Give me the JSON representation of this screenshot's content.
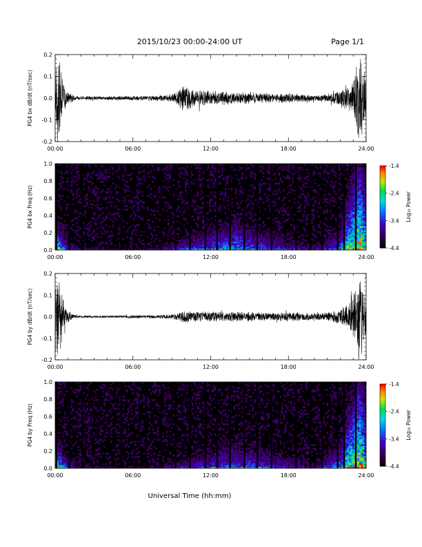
{
  "header": {
    "title": "2015/10/23  00:00-24:00 UT",
    "page": "Page 1/1"
  },
  "xlabel": "Universal Time (hh:mm)",
  "colorbar": {
    "label": "Log₁₀ Power",
    "ticks": [
      "-1.4",
      "-2.4",
      "-3.4",
      "-4.4"
    ],
    "range": [
      -4.4,
      -1.4
    ]
  },
  "chart_data": [
    {
      "type": "line",
      "ylabel": "PG4 bx dB/dt (nT/sec)",
      "xlim": [
        0,
        24
      ],
      "ylim": [
        -0.2,
        0.2
      ],
      "x_ticks": [
        "00:00",
        "06:00",
        "12:00",
        "18:00",
        "24:00"
      ],
      "y_ticks": [
        "0.2",
        "0.1",
        "0.0",
        "-0.1",
        "-0.2"
      ],
      "envelope": {
        "hours": [
          0,
          0.3,
          0.8,
          1.5,
          2,
          3,
          4,
          5,
          6,
          7,
          8,
          9,
          9.5,
          9.8,
          10.5,
          11,
          12,
          13,
          14,
          15,
          16,
          17,
          18,
          19,
          20,
          21,
          22,
          22.3,
          22.7,
          23,
          23.3,
          23.6,
          24
        ],
        "amplitude": [
          0.2,
          0.2,
          0.05,
          0.01,
          0.01,
          0.01,
          0.01,
          0.01,
          0.012,
          0.012,
          0.015,
          0.02,
          0.04,
          0.07,
          0.05,
          0.04,
          0.035,
          0.035,
          0.03,
          0.03,
          0.025,
          0.025,
          0.025,
          0.02,
          0.015,
          0.02,
          0.04,
          0.07,
          0.05,
          0.1,
          0.2,
          0.2,
          0.1
        ]
      }
    },
    {
      "type": "heatmap",
      "ylabel": "PG4 bx Freq (Hz)",
      "xlim": [
        0,
        24
      ],
      "ylim": [
        0,
        1.0
      ],
      "x_ticks": [
        "00:00",
        "06:00",
        "12:00",
        "18:00",
        "24:00"
      ],
      "y_ticks": [
        "1.0",
        "0.8",
        "0.6",
        "0.4",
        "0.2",
        "0.0"
      ],
      "z_range": [
        -4.4,
        -1.4
      ],
      "gap_hours": [
        0.1,
        1.1,
        2.1,
        5.1,
        7.0,
        8.2,
        9.3,
        10.4,
        11.6,
        12.5,
        13.5,
        14.6,
        15.6,
        16.7,
        18.6,
        19.7,
        20.6,
        21.8,
        22.3,
        23.2
      ],
      "activity_hours": [
        0,
        0.5,
        1,
        2,
        4,
        6,
        8,
        10,
        12,
        14,
        16,
        18,
        20,
        22,
        22.5,
        23,
        23.5,
        24
      ],
      "activity_strength": [
        0.9,
        0.6,
        0.35,
        0.2,
        0.15,
        0.15,
        0.2,
        0.4,
        0.5,
        0.55,
        0.45,
        0.35,
        0.25,
        0.45,
        0.8,
        0.9,
        1.0,
        0.8
      ],
      "activity_height_hz": [
        0.25,
        0.2,
        0.12,
        0.08,
        0.06,
        0.06,
        0.08,
        0.15,
        0.2,
        0.3,
        0.2,
        0.15,
        0.1,
        0.25,
        0.4,
        0.6,
        0.8,
        0.5
      ]
    },
    {
      "type": "line",
      "ylabel": "PG4 by dB/dt (nT/sec)",
      "xlim": [
        0,
        24
      ],
      "ylim": [
        -0.2,
        0.2
      ],
      "x_ticks": [
        "00:00",
        "06:00",
        "12:00",
        "18:00",
        "24:00"
      ],
      "y_ticks": [
        "0.2",
        "0.1",
        "0.0",
        "-0.1",
        "-0.2"
      ],
      "envelope": {
        "hours": [
          0,
          0.3,
          0.8,
          1.5,
          2,
          3,
          4,
          5,
          6,
          7,
          8,
          9,
          9.5,
          9.8,
          10.5,
          11,
          12,
          13,
          14,
          15,
          16,
          17,
          18,
          19,
          20,
          21,
          22,
          22.5,
          23,
          23.3,
          23.6,
          24
        ],
        "amplitude": [
          0.2,
          0.2,
          0.04,
          0.008,
          0.006,
          0.006,
          0.006,
          0.006,
          0.008,
          0.008,
          0.01,
          0.012,
          0.02,
          0.035,
          0.025,
          0.025,
          0.025,
          0.025,
          0.025,
          0.025,
          0.02,
          0.02,
          0.025,
          0.02,
          0.02,
          0.02,
          0.04,
          0.06,
          0.1,
          0.2,
          0.2,
          0.1
        ]
      }
    },
    {
      "type": "heatmap",
      "ylabel": "PG4 by Freq (Hz)",
      "xlim": [
        0,
        24
      ],
      "ylim": [
        0,
        1.0
      ],
      "x_ticks": [
        "00:00",
        "06:00",
        "12:00",
        "18:00",
        "24:00"
      ],
      "y_ticks": [
        "1.0",
        "0.8",
        "0.6",
        "0.4",
        "0.2",
        "0.0"
      ],
      "z_range": [
        -4.4,
        -1.4
      ],
      "gap_hours": [
        0.1,
        1.1,
        2.1,
        5.1,
        7.0,
        8.2,
        9.3,
        10.4,
        11.6,
        12.5,
        13.5,
        14.6,
        15.6,
        16.7,
        18.6,
        19.7,
        20.6,
        21.8,
        22.3,
        23.2
      ],
      "activity_hours": [
        0,
        0.5,
        1,
        2,
        4,
        6,
        8,
        10,
        12,
        14,
        16,
        18,
        20,
        22,
        22.5,
        23,
        23.5,
        24
      ],
      "activity_strength": [
        0.9,
        0.6,
        0.35,
        0.2,
        0.15,
        0.15,
        0.2,
        0.35,
        0.45,
        0.5,
        0.45,
        0.35,
        0.25,
        0.5,
        0.8,
        0.9,
        1.0,
        0.8
      ],
      "activity_height_hz": [
        0.25,
        0.2,
        0.12,
        0.08,
        0.06,
        0.06,
        0.08,
        0.12,
        0.18,
        0.25,
        0.2,
        0.15,
        0.1,
        0.3,
        0.45,
        0.6,
        0.8,
        0.5
      ]
    }
  ]
}
